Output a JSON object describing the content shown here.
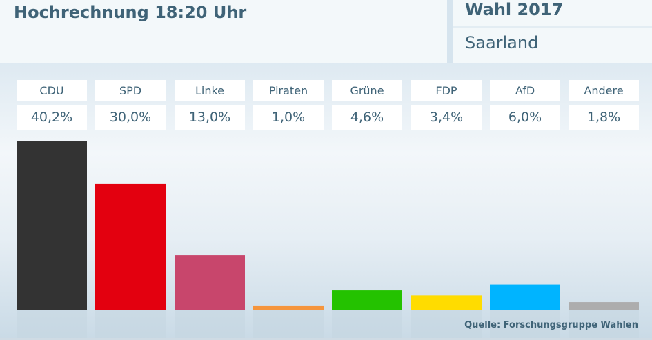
{
  "header": {
    "title": "Hochrechnung 18:20 Uhr",
    "election": "Wahl 2017",
    "region": "Saarland"
  },
  "source": "Quelle: Forschungsgruppe Wahlen",
  "chart_data": {
    "type": "bar",
    "categories": [
      "CDU",
      "SPD",
      "Linke",
      "Piraten",
      "Grüne",
      "FDP",
      "AfD",
      "Andere"
    ],
    "values": [
      40.2,
      30.0,
      13.0,
      1.0,
      4.6,
      3.4,
      6.0,
      1.8
    ],
    "labels": [
      "40,2%",
      "30,0%",
      "13,0%",
      "1,0%",
      "4,6%",
      "3,4%",
      "6,0%",
      "1,8%"
    ],
    "colors": [
      "#333333",
      "#e3000f",
      "#c8466c",
      "#f5953c",
      "#24c200",
      "#ffdc00",
      "#00b4ff",
      "#adadad"
    ],
    "ylim": [
      0,
      40.2
    ],
    "grid": false
  }
}
